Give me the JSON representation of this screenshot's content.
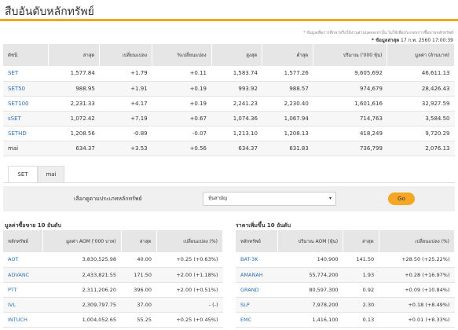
{
  "page": {
    "title": "สืบอันดับหลักทรัพย์",
    "note": "* ข้อมูลเพื่อการศึกษาหรือใช้งานส่วนบุคคลเท่านั้น ไม่ใช้เพื่อประกอบการซื้อขายหลักทรัพย์",
    "date_label": "* ข้อมูลล่าสุด",
    "date_value": "17 ก.พ. 2560 17:00:39"
  },
  "index_table": {
    "headers": [
      "ดัชนี",
      "ล่าสุด",
      "เปลี่ยนแปลง",
      "%เปลี่ยนแปลง",
      "สูงสุด",
      "ต่ำสุด",
      "ปริมาณ ('000 หุ้น)",
      "มูลค่า (ล้านบาท)"
    ],
    "rows": [
      {
        "name": "SET",
        "last": "1,577.84",
        "chg": "+1.79",
        "pct": "+0.11",
        "high": "1,583.74",
        "low": "1,577.26",
        "vol": "9,605,692",
        "val": "46,611.13",
        "dir": "pos"
      },
      {
        "name": "SET50",
        "last": "988.95",
        "chg": "+1.91",
        "pct": "+0.19",
        "high": "993.92",
        "low": "988.57",
        "vol": "974,679",
        "val": "28,426.43",
        "dir": "pos"
      },
      {
        "name": "SET100",
        "last": "2,231.33",
        "chg": "+4.17",
        "pct": "+0.19",
        "high": "2,241.23",
        "low": "2,230.40",
        "vol": "1,601,616",
        "val": "32,927.59",
        "dir": "pos"
      },
      {
        "name": "sSET",
        "last": "1,072.42",
        "chg": "+7.19",
        "pct": "+0.67",
        "high": "1,074.36",
        "low": "1,067.94",
        "vol": "714,763",
        "val": "3,584.50",
        "dir": "pos"
      },
      {
        "name": "SETHD",
        "last": "1,208.56",
        "chg": "-0.89",
        "pct": "-0.07",
        "high": "1,213.10",
        "low": "1,208.13",
        "vol": "418,249",
        "val": "9,720.29",
        "dir": "neg"
      },
      {
        "name": "mai",
        "last": "634.37",
        "chg": "+3.53",
        "pct": "+0.56",
        "high": "634.37",
        "low": "631.83",
        "vol": "736,799",
        "val": "2,076.13",
        "dir": "pos"
      }
    ]
  },
  "tabs": [
    {
      "label": "SET"
    },
    {
      "label": "mai"
    }
  ],
  "filter": {
    "label": "เลือกดูตามประเภทหลักทรัพย์",
    "selected": "หุ้นสามัญ",
    "go_label": "Go"
  },
  "top_value": {
    "title": "มูลค่าซื้อขาย 10 อันดับ",
    "headers": [
      "หลักทรัพย์",
      "มูลค่า AOM ('000 บาท)",
      "ล่าสุด",
      "เปลี่ยนแปลง (%)"
    ],
    "rows": [
      {
        "symbol": "AOT",
        "value": "3,830,525.98",
        "last": "40.00",
        "chg": "+0.25 (+0.63%)",
        "dir": "pos"
      },
      {
        "symbol": "ADVANC",
        "value": "2,433,821.55",
        "last": "171.50",
        "chg": "+2.00 (+1.18%)",
        "dir": "pos"
      },
      {
        "symbol": "PTT",
        "value": "2,311,206.20",
        "last": "396.00",
        "chg": "+2.00 (+0.51%)",
        "dir": "pos"
      },
      {
        "symbol": "IVL",
        "value": "2,309,797.75",
        "last": "37.00",
        "chg": "- (-)",
        "dir": "flat"
      },
      {
        "symbol": "INTUCH",
        "value": "1,004,052.65",
        "last": "55.25",
        "chg": "+0.25 (+0.45%)",
        "dir": "pos"
      }
    ]
  },
  "top_gainers": {
    "title": "ราคาเพิ่มขึ้น 10 อันดับ",
    "headers": [
      "หลักทรัพย์",
      "ปริมาณ AOM (หุ้น)",
      "ล่าสุด",
      "เปลี่ยนแปลง (%)"
    ],
    "rows": [
      {
        "symbol": "BAT-3K",
        "vol": "140,900",
        "last": "141.50",
        "chg": "+28.50 (+25.22%)",
        "dir": "pos"
      },
      {
        "symbol": "AMANAH",
        "vol": "55,774,200",
        "last": "1.93",
        "chg": "+0.28 (+16.97%)",
        "dir": "pos"
      },
      {
        "symbol": "GRAND",
        "vol": "80,597,300",
        "last": "0.92",
        "chg": "+0.09 (+10.84%)",
        "dir": "pos"
      },
      {
        "symbol": "SLP",
        "vol": "7,978,200",
        "last": "2.30",
        "chg": "+0.18 (+8.49%)",
        "dir": "pos"
      },
      {
        "symbol": "EMC",
        "vol": "1,416,100",
        "last": "0.13",
        "chg": "+0.01 (+8.33%)",
        "dir": "pos"
      }
    ]
  },
  "colors": {
    "accent": "#f0a81e",
    "link": "#2a6fb5",
    "positive": "#2ca02c",
    "negative": "#d62728",
    "header_bg": "#e6e6e6"
  }
}
